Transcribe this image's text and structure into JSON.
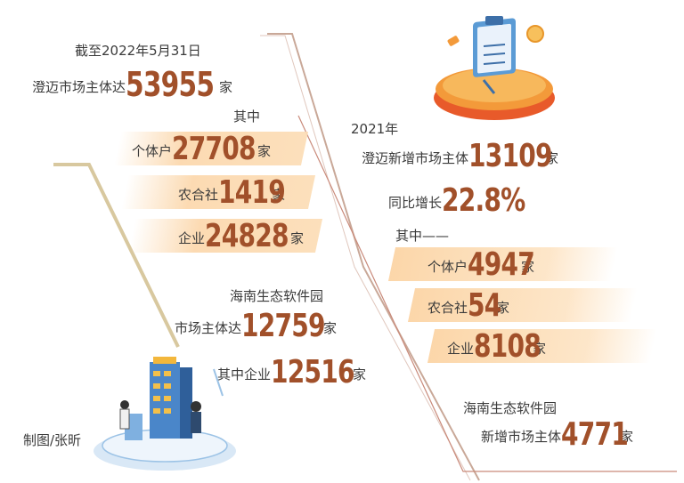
{
  "left": {
    "date_line": "截至2022年5月31日",
    "total": {
      "label": "澄迈市场主体达",
      "value": "53955",
      "unit": "家"
    },
    "sub_title": "其中",
    "items": [
      {
        "label": "个体户",
        "value": "27708",
        "unit": "家"
      },
      {
        "label": "农合社",
        "value": "1419",
        "unit": "家"
      },
      {
        "label": "企业",
        "value": "24828",
        "unit": "家"
      }
    ],
    "park": {
      "name": "海南生态软件园",
      "total_label": "市场主体达",
      "total_value": "12759",
      "total_unit": "家",
      "ent_label": "其中企业",
      "ent_value": "12516",
      "ent_unit": "家"
    },
    "credit": "制图/张昕"
  },
  "right": {
    "year": "2021年",
    "new": {
      "label": "澄迈新增市场主体",
      "value": "13109",
      "unit": "家"
    },
    "growth": {
      "label": "同比增长",
      "value": "22.8%"
    },
    "sub_title": "其中——",
    "items": [
      {
        "label": "个体户",
        "value": "4947",
        "unit": "家"
      },
      {
        "label": "农合社",
        "value": "54",
        "unit": "家"
      },
      {
        "label": "企业",
        "value": "8108",
        "unit": "家"
      }
    ],
    "park": {
      "name": "海南生态软件园",
      "new_label": "新增市场主体",
      "new_value": "4771",
      "new_unit": "家"
    }
  },
  "colors": {
    "number": "#a1502a",
    "band": "#fbd4a5",
    "line": "#c98a7a",
    "accent_orange": "#f39a3a"
  }
}
